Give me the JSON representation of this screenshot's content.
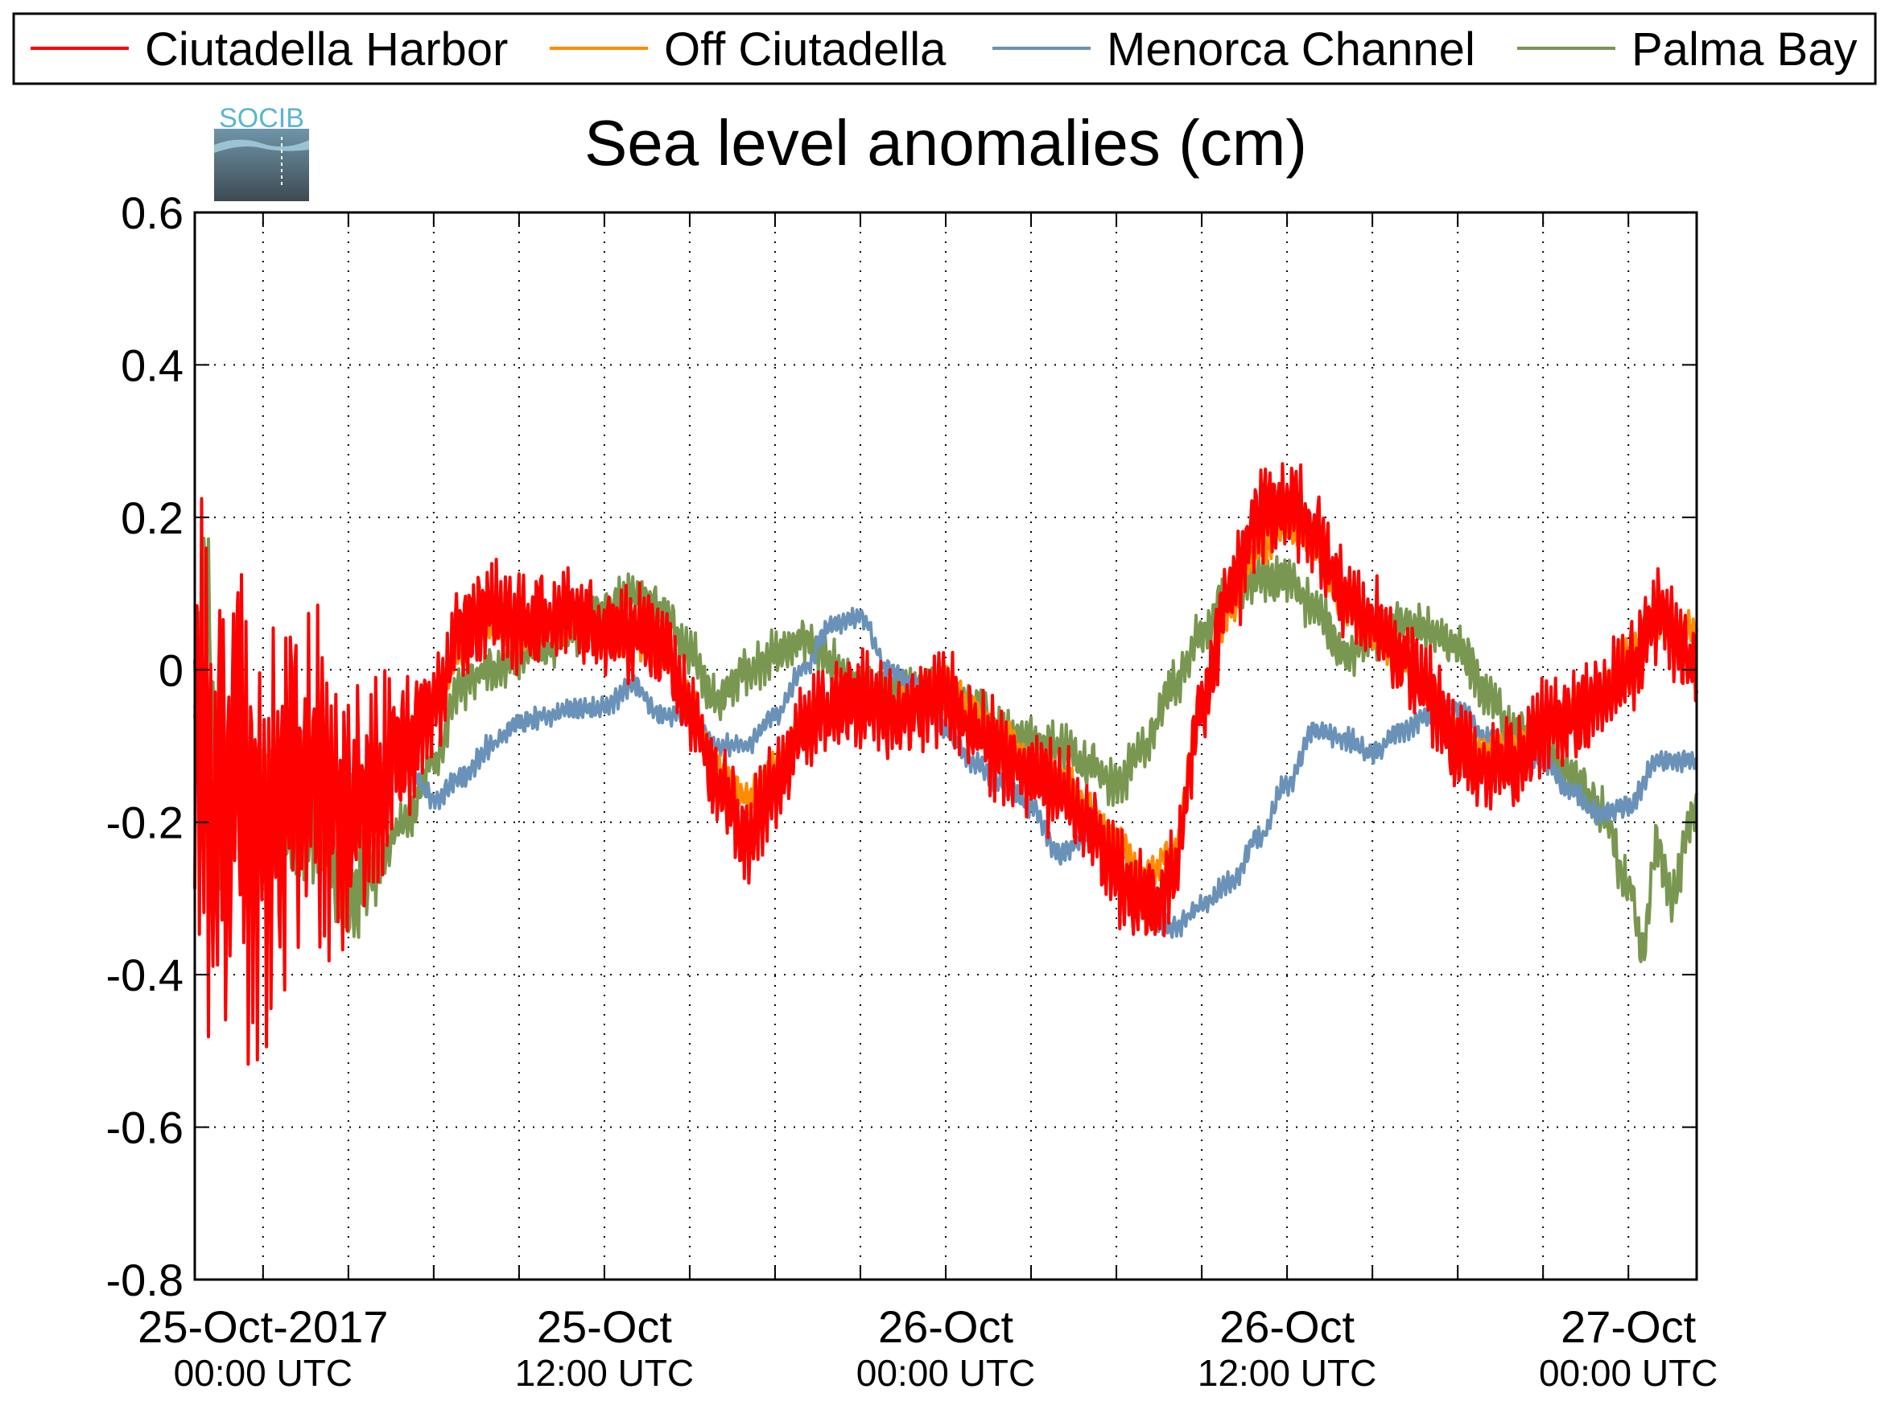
{
  "chart_data": {
    "type": "line",
    "title": "Sea level anomalies (cm)",
    "logo_text": "SOCIB",
    "xlabel": "",
    "ylabel": "",
    "x_unit": "hours since 25-Oct-2017 00:00 UTC",
    "x_range": [
      -2.4,
      50.4
    ],
    "ylim": [
      -0.8,
      0.6
    ],
    "yticks": [
      0.6,
      0.4,
      0.2,
      0,
      -0.2,
      -0.4,
      -0.6,
      -0.8
    ],
    "ytick_labels": [
      "0.6",
      "0.4",
      "0.2",
      "0",
      "-0.2",
      "-0.4",
      "-0.6",
      "-0.8"
    ],
    "x_major_ticks": [
      {
        "x": 0,
        "line1": "25-Oct-2017",
        "line2": "00:00 UTC"
      },
      {
        "x": 12,
        "line1": "25-Oct",
        "line2": "12:00 UTC"
      },
      {
        "x": 24,
        "line1": "26-Oct",
        "line2": "00:00 UTC"
      },
      {
        "x": 36,
        "line1": "26-Oct",
        "line2": "12:00 UTC"
      },
      {
        "x": 48,
        "line1": "27-Oct",
        "line2": "00:00 UTC"
      }
    ],
    "x_minor_ticks": [
      0,
      3,
      6,
      9,
      12,
      15,
      18,
      21,
      24,
      27,
      30,
      33,
      36,
      39,
      42,
      45,
      48
    ],
    "grid": true,
    "legend_position": "top",
    "series": [
      {
        "name": "Ciutadella Harbor",
        "color": "#ff0000",
        "width": 4,
        "noise": 0.05,
        "x": [
          -2.4,
          -2.0,
          -1.6,
          -1.0,
          -0.5,
          0.0,
          1.0,
          2.0,
          3.0,
          4.0,
          5.0,
          6.0,
          7.0,
          8.0,
          9.0,
          10.0,
          11.0,
          12.0,
          13.0,
          14.0,
          15.0,
          16.0,
          17.0,
          18.0,
          19.0,
          20.0,
          21.0,
          22.0,
          23.0,
          24.0,
          25.0,
          26.0,
          27.0,
          28.0,
          29.0,
          30.0,
          31.0,
          31.5,
          32.0,
          33.0,
          34.0,
          35.0,
          36.0,
          37.0,
          38.0,
          39.0,
          40.0,
          41.0,
          42.0,
          43.0,
          44.0,
          45.0,
          46.0,
          47.0,
          48.0,
          49.0,
          50.4
        ],
        "y": [
          -0.05,
          -0.15,
          -0.2,
          -0.15,
          -0.18,
          -0.2,
          -0.16,
          -0.15,
          -0.18,
          -0.15,
          -0.1,
          -0.05,
          0.05,
          0.08,
          0.06,
          0.07,
          0.08,
          0.05,
          0.05,
          0.04,
          -0.05,
          -0.15,
          -0.22,
          -0.15,
          -0.08,
          -0.05,
          -0.04,
          -0.06,
          -0.05,
          -0.03,
          -0.08,
          -0.11,
          -0.14,
          -0.16,
          -0.2,
          -0.27,
          -0.3,
          -0.3,
          -0.26,
          -0.05,
          0.1,
          0.2,
          0.22,
          0.18,
          0.1,
          0.06,
          0.02,
          -0.03,
          -0.1,
          -0.13,
          -0.12,
          -0.08,
          -0.06,
          -0.04,
          0.0,
          0.07,
          0.0
        ]
      },
      {
        "name": "Off Ciutadella",
        "color": "#ff8c00",
        "width": 4,
        "noise": 0.02,
        "x": [
          -2.4,
          -2.0,
          -1.0,
          0.0,
          1.0,
          2.0,
          3.0,
          4.0,
          5.0,
          6.0,
          7.0,
          8.0,
          9.0,
          10.0,
          11.0,
          12.0,
          13.0,
          14.0,
          15.0,
          16.0,
          17.0,
          18.0,
          19.0,
          20.0,
          21.0,
          22.0,
          23.0,
          24.0,
          25.0,
          26.0,
          27.0,
          28.0,
          29.0,
          30.0,
          31.0,
          32.0,
          33.0,
          34.0,
          35.0,
          36.0,
          37.0,
          38.0,
          39.0,
          40.0,
          41.0,
          42.0,
          43.0,
          44.0,
          45.0,
          46.0,
          47.0,
          48.0,
          49.0,
          50.4
        ],
        "y": [
          -0.05,
          -0.12,
          -0.1,
          -0.13,
          -0.14,
          -0.14,
          -0.17,
          -0.14,
          -0.1,
          -0.05,
          0.03,
          0.06,
          0.05,
          0.06,
          0.06,
          0.04,
          0.04,
          0.03,
          -0.04,
          -0.13,
          -0.17,
          -0.13,
          -0.07,
          -0.05,
          -0.04,
          -0.05,
          -0.04,
          -0.02,
          -0.06,
          -0.09,
          -0.12,
          -0.14,
          -0.18,
          -0.23,
          -0.27,
          -0.24,
          -0.05,
          0.08,
          0.16,
          0.19,
          0.16,
          0.08,
          0.05,
          0.02,
          -0.03,
          -0.08,
          -0.11,
          -0.1,
          -0.07,
          -0.05,
          -0.03,
          0.02,
          0.06,
          0.05
        ]
      },
      {
        "name": "Menorca Channel",
        "color": "#6a92b8",
        "width": 4,
        "noise": 0.012,
        "x": [
          -2.4,
          -2.0,
          -1.0,
          0.0,
          1.0,
          2.0,
          3.0,
          4.0,
          5.0,
          6.0,
          7.0,
          8.0,
          9.0,
          10.0,
          11.0,
          12.0,
          13.0,
          14.0,
          15.0,
          16.0,
          17.0,
          18.0,
          19.0,
          20.0,
          21.0,
          22.0,
          23.0,
          24.0,
          25.0,
          26.0,
          27.0,
          28.0,
          29.0,
          30.0,
          31.0,
          31.5,
          32.0,
          33.0,
          34.0,
          35.0,
          36.0,
          37.0,
          38.0,
          39.0,
          40.0,
          41.0,
          42.0,
          43.0,
          44.0,
          45.0,
          46.0,
          47.0,
          48.0,
          49.0,
          50.4
        ],
        "y": [
          -0.05,
          -0.1,
          -0.12,
          -0.14,
          -0.17,
          -0.16,
          -0.15,
          -0.13,
          -0.12,
          -0.17,
          -0.14,
          -0.1,
          -0.07,
          -0.06,
          -0.05,
          -0.05,
          -0.02,
          -0.06,
          -0.06,
          -0.1,
          -0.1,
          -0.06,
          0.0,
          0.06,
          0.07,
          0.0,
          -0.02,
          -0.08,
          -0.12,
          -0.15,
          -0.18,
          -0.24,
          -0.22,
          -0.22,
          -0.3,
          -0.33,
          -0.34,
          -0.31,
          -0.28,
          -0.22,
          -0.15,
          -0.08,
          -0.09,
          -0.11,
          -0.08,
          -0.06,
          -0.05,
          -0.09,
          -0.1,
          -0.12,
          -0.16,
          -0.19,
          -0.18,
          -0.12,
          -0.12
        ]
      },
      {
        "name": "Palma Bay",
        "color": "#799750",
        "width": 4,
        "noise": 0.025,
        "x": [
          -2.4,
          -2.0,
          -1.5,
          -1.0,
          0.0,
          1.0,
          2.0,
          3.0,
          4.0,
          5.0,
          6.0,
          7.0,
          8.0,
          9.0,
          10.0,
          11.0,
          12.0,
          13.0,
          14.0,
          15.0,
          16.0,
          17.0,
          18.0,
          19.0,
          20.0,
          21.0,
          22.0,
          23.0,
          24.0,
          25.0,
          26.0,
          27.0,
          28.0,
          29.0,
          30.0,
          31.0,
          32.0,
          33.0,
          34.0,
          35.0,
          36.0,
          37.0,
          38.0,
          39.0,
          40.0,
          41.0,
          42.0,
          43.0,
          44.0,
          45.0,
          46.0,
          47.0,
          48.0,
          48.5,
          49.0,
          49.5,
          50.4
        ],
        "y": [
          -0.05,
          0.12,
          -0.25,
          -0.05,
          -0.2,
          -0.22,
          -0.2,
          -0.3,
          -0.25,
          -0.2,
          -0.12,
          -0.02,
          0.0,
          0.02,
          0.03,
          0.05,
          0.08,
          0.1,
          0.08,
          0.02,
          -0.04,
          0.0,
          0.02,
          0.04,
          0.01,
          -0.03,
          -0.03,
          -0.02,
          -0.04,
          -0.05,
          -0.08,
          -0.09,
          -0.1,
          -0.12,
          -0.15,
          -0.1,
          -0.02,
          0.05,
          0.1,
          0.12,
          0.12,
          0.08,
          0.02,
          0.04,
          0.06,
          0.05,
          0.03,
          -0.03,
          -0.08,
          -0.1,
          -0.14,
          -0.18,
          -0.28,
          -0.36,
          -0.23,
          -0.3,
          -0.18
        ]
      }
    ]
  }
}
